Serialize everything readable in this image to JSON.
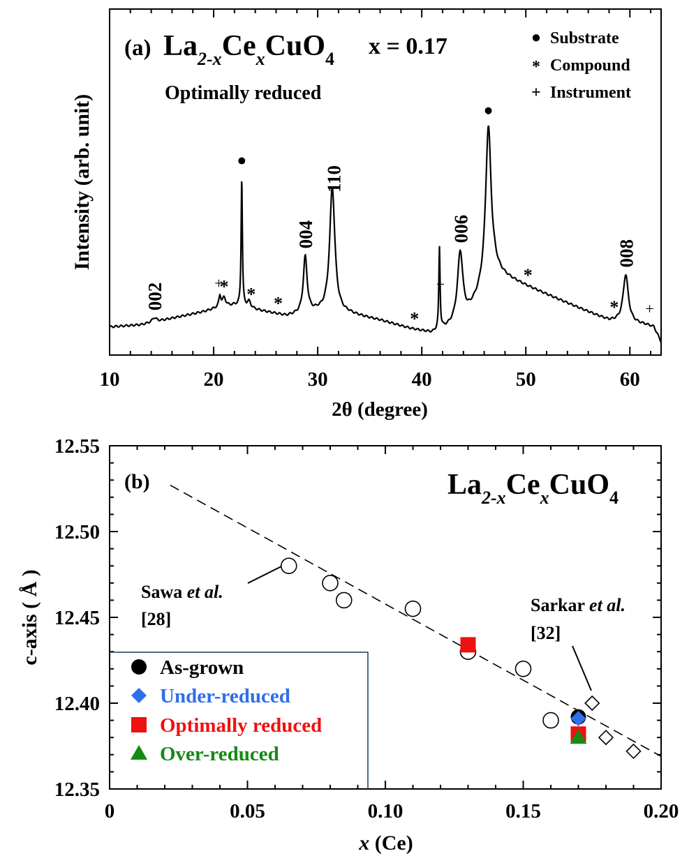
{
  "chart_data": [
    {
      "panel": "(a)",
      "type": "line",
      "title_formula": {
        "base1": "La",
        "sub1": "2-x",
        "base2": "Ce",
        "sub2": "x",
        "base3": "CuO",
        "sub3": "4"
      },
      "composition": "x = 0.17",
      "subtitle": "Optimally reduced",
      "xlabel": "2θ (degree)",
      "ylabel": "Intensity (arb. unit)",
      "xlim": [
        10,
        63
      ],
      "xticks": [
        "10",
        "20",
        "30",
        "40",
        "50",
        "60"
      ],
      "legend": [
        {
          "symbol": "●",
          "label": "Substrate"
        },
        {
          "symbol": "*",
          "label": "Compound"
        },
        {
          "symbol": "+",
          "label": "Instrument"
        }
      ],
      "peak_labels": [
        {
          "text": "002",
          "x": 14.3
        },
        {
          "text": "004",
          "x": 28.8
        },
        {
          "text": "110",
          "x": 31.5
        },
        {
          "text": "006",
          "x": 43.7
        },
        {
          "text": "008",
          "x": 59.6
        }
      ],
      "markers": [
        {
          "symbol": "●",
          "x": 22.7
        },
        {
          "symbol": "●",
          "x": 46.4
        },
        {
          "symbol": "+",
          "x": 20.5
        },
        {
          "symbol": "+",
          "x": 41.8
        },
        {
          "symbol": "+",
          "x": 61.9
        },
        {
          "symbol": "*",
          "x": 21.0
        },
        {
          "symbol": "*",
          "x": 23.6
        },
        {
          "symbol": "*",
          "x": 26.2
        },
        {
          "symbol": "*",
          "x": 39.3
        },
        {
          "symbol": "*",
          "x": 50.2
        },
        {
          "symbol": "*",
          "x": 58.5
        }
      ],
      "baseline": [
        [
          10,
          0.03
        ],
        [
          13,
          0.04
        ],
        [
          15,
          0.06
        ],
        [
          17,
          0.08
        ],
        [
          19,
          0.1
        ],
        [
          20.5,
          0.12
        ],
        [
          22,
          0.13
        ],
        [
          23,
          0.12
        ],
        [
          25,
          0.1
        ],
        [
          27,
          0.08
        ],
        [
          30,
          0.1
        ],
        [
          33,
          0.09
        ],
        [
          36,
          0.06
        ],
        [
          39,
          0.02
        ],
        [
          41,
          0.0
        ],
        [
          44,
          0.05
        ],
        [
          47,
          0.28
        ],
        [
          50,
          0.22
        ],
        [
          53,
          0.16
        ],
        [
          56,
          0.1
        ],
        [
          58,
          0.06
        ],
        [
          60,
          0.05
        ],
        [
          61.5,
          0.04
        ],
        [
          62.3,
          0.03
        ],
        [
          63,
          -0.04
        ]
      ],
      "peaks": [
        {
          "x": 14.3,
          "height": 0.02,
          "width": 0.25
        },
        {
          "x": 20.6,
          "height": 0.05,
          "width": 0.12
        },
        {
          "x": 21.0,
          "height": 0.04,
          "width": 0.2
        },
        {
          "x": 22.7,
          "height": 0.6,
          "width": 0.07
        },
        {
          "x": 23.4,
          "height": 0.03,
          "width": 0.2
        },
        {
          "x": 28.8,
          "height": 0.26,
          "width": 0.22
        },
        {
          "x": 31.4,
          "height": 0.58,
          "width": 0.3
        },
        {
          "x": 41.7,
          "height": 0.38,
          "width": 0.07
        },
        {
          "x": 43.7,
          "height": 0.33,
          "width": 0.32
        },
        {
          "x": 46.4,
          "height": 0.72,
          "width": 0.32
        },
        {
          "x": 59.6,
          "height": 0.22,
          "width": 0.3
        }
      ]
    },
    {
      "panel": "(b)",
      "type": "scatter",
      "title_formula": {
        "base1": "La",
        "sub1": "2-x",
        "base2": "Ce",
        "sub2": "x",
        "base3": "CuO",
        "sub3": "4"
      },
      "xlabel_var": "x",
      "xlabel_rest": " (Ce)",
      "ylabel": "c-axis ( Å )",
      "xlim": [
        0,
        0.2
      ],
      "ylim": [
        12.35,
        12.55
      ],
      "xticks": [
        "0",
        "0.05",
        "0.10",
        "0.15",
        "0.20"
      ],
      "yticks": [
        "12.35",
        "12.40",
        "12.45",
        "12.50",
        "12.55"
      ],
      "series": [
        {
          "name": "Sawa et al. [28]",
          "marker": "open-circle",
          "x": [
            0.065,
            0.08,
            0.085,
            0.11,
            0.13,
            0.15,
            0.16
          ],
          "y": [
            12.48,
            12.47,
            12.46,
            12.455,
            12.43,
            12.42,
            12.39
          ]
        },
        {
          "name": "Sarkar et al. [32]",
          "marker": "open-diamond",
          "x": [
            0.175,
            0.18,
            0.19
          ],
          "y": [
            12.4,
            12.38,
            12.372
          ]
        },
        {
          "name": "As-grown",
          "marker": "filled-circle",
          "color": "#000000",
          "x": [
            0.17
          ],
          "y": [
            12.392
          ]
        },
        {
          "name": "Under-reduced",
          "marker": "filled-diamond",
          "color": "#2f6fec",
          "x": [
            0.17
          ],
          "y": [
            12.391
          ]
        },
        {
          "name": "Optimally reduced",
          "marker": "filled-square",
          "color": "#ee1111",
          "x": [
            0.13,
            0.17
          ],
          "y": [
            12.434,
            12.382
          ]
        },
        {
          "name": "Over-reduced",
          "marker": "filled-triangle",
          "color": "#158a15",
          "x": [
            0.17
          ],
          "y": [
            12.38
          ]
        }
      ],
      "fit_line": {
        "x": [
          0.022,
          0.2
        ],
        "y": [
          12.527,
          12.369
        ]
      },
      "annotations": [
        {
          "line1_a": "Sawa ",
          "line1_b": "et al.",
          "line2": "[28]"
        },
        {
          "line1_a": "Sarkar ",
          "line1_b": "et al.",
          "line2": "[32]"
        }
      ],
      "legend": [
        {
          "label": "As-grown",
          "color": "#000000",
          "marker": "filled-circle"
        },
        {
          "label": "Under-reduced",
          "color": "#2f6fec",
          "marker": "filled-diamond"
        },
        {
          "label": "Optimally reduced",
          "color": "#ee1111",
          "marker": "filled-square"
        },
        {
          "label": "Over-reduced",
          "color": "#158a15",
          "marker": "filled-triangle"
        }
      ]
    }
  ]
}
